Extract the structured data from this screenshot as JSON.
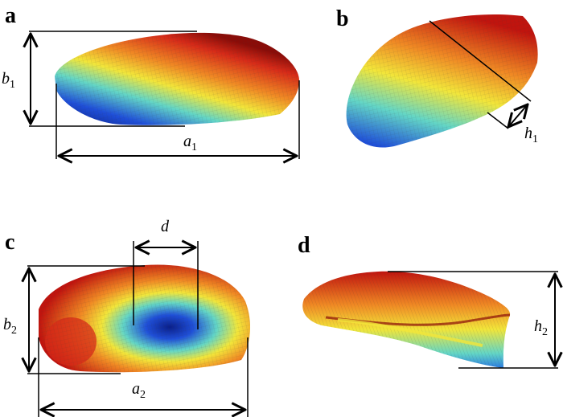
{
  "panels": {
    "a": {
      "letter": "a",
      "width_label": {
        "main": "a",
        "sub": "1"
      },
      "height_label": {
        "main": "b",
        "sub": "1"
      }
    },
    "b": {
      "letter": "b",
      "height_label": {
        "main": "h",
        "sub": "1"
      }
    },
    "c": {
      "letter": "c",
      "width_label": {
        "main": "a",
        "sub": "2"
      },
      "height_label": {
        "main": "b",
        "sub": "2"
      },
      "distance_label": {
        "main": "d"
      }
    },
    "d": {
      "letter": "d",
      "height_label": {
        "main": "h",
        "sub": "2"
      }
    }
  },
  "colors": {
    "high": "#b0120e",
    "mid_high": "#f08a24",
    "mid": "#f2e63a",
    "mid_low": "#63d6c6",
    "low": "#1f4fd8",
    "deep_low": "#0a1f8a"
  }
}
